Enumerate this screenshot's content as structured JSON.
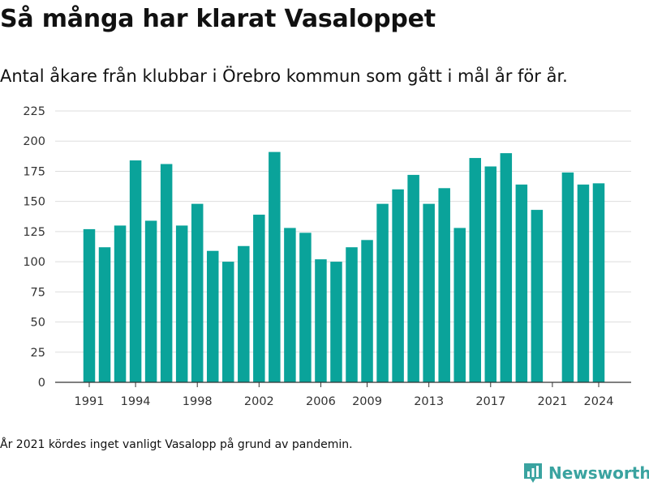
{
  "title": "Så många har klarat Vasaloppet",
  "subtitle": "Antal åkare från klubbar i Örebro kommun som gått i mål år för år.",
  "footnote": "År 2021 kördes inget vanligt Vasalopp på grund av pandemin.",
  "brand": {
    "name": "Newsworthy",
    "icon": "newsworthy-logo-icon",
    "color": "#3aa3a0"
  },
  "colors": {
    "bar": "#0aa39a",
    "grid": "#dddddd",
    "axis": "#333333"
  },
  "chart_data": {
    "type": "bar",
    "title": "Så många har klarat Vasaloppet",
    "xlabel": "",
    "ylabel": "",
    "categories": [
      "1991",
      "1992",
      "1993",
      "1994",
      "1995",
      "1996",
      "1997",
      "1998",
      "1999",
      "2000",
      "2001",
      "2002",
      "2003",
      "2004",
      "2005",
      "2006",
      "2007",
      "2008",
      "2009",
      "2010",
      "2011",
      "2012",
      "2013",
      "2014",
      "2015",
      "2016",
      "2017",
      "2018",
      "2019",
      "2020",
      "2021",
      "2022",
      "2023",
      "2024"
    ],
    "values": [
      127,
      112,
      130,
      184,
      134,
      181,
      130,
      148,
      109,
      100,
      113,
      139,
      191,
      128,
      124,
      102,
      100,
      112,
      118,
      148,
      160,
      172,
      148,
      161,
      128,
      186,
      179,
      190,
      164,
      143,
      null,
      174,
      164,
      165
    ],
    "x_tick_labels": [
      "1991",
      "1994",
      "1998",
      "2002",
      "2006",
      "2009",
      "2013",
      "2017",
      "2021",
      "2024"
    ],
    "y_ticks": [
      0,
      25,
      50,
      75,
      100,
      125,
      150,
      175,
      200,
      225
    ],
    "ylim": [
      0,
      225
    ],
    "grid": true,
    "legend": "none"
  }
}
